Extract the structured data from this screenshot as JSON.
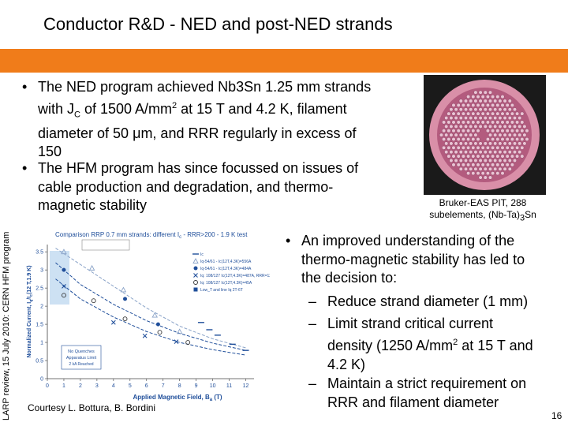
{
  "slide": {
    "title": "Conductor R&D - NED and post-NED strands",
    "side_text": "LARP review, 15 July 2010: CERN HFM program",
    "page_number": "16",
    "banner_color": "#f07c1a"
  },
  "bullets_left": [
    {
      "marker": "•",
      "lines": [
        "The NED program achieved Nb3Sn 1.25 mm strands",
        {
          "pre": "with J",
          "sub": "C",
          "post": " of 1500 A/mm",
          "sup": "2",
          "post2": " at 15 T and 4.2 K, filament"
        },
        "diameter of 50 μm, and RRR regularly in excess of",
        "150"
      ]
    },
    {
      "marker": "•",
      "lines": [
        "The HFM program has since focussed on issues of",
        "cable production and degradation, and thermo-",
        "magnetic stability"
      ]
    }
  ],
  "bullet_right": {
    "marker": "•",
    "lines": [
      "An improved understanding of the",
      "thermo-magnetic stability has led to",
      "the decision to:"
    ]
  },
  "sub_bullets": [
    {
      "marker": "–",
      "lines": [
        [
          "Reduce strand diameter (1 mm)"
        ]
      ]
    },
    {
      "marker": "–",
      "lines": [
        [
          "Limit strand critical current"
        ],
        [
          "density (1250 A/mm",
          "2",
          " at 15 T and"
        ],
        [
          "4.2 K)"
        ]
      ]
    },
    {
      "marker": "–",
      "lines": [
        [
          "Maintain a strict requirement on"
        ],
        [
          "RRR and filament diameter"
        ]
      ]
    }
  ],
  "photo_caption": {
    "line1": "Bruker-EAS PIT, 288",
    "line2_pre": "subelements, (Nb-Ta)",
    "line2_sub": "3",
    "line2_post": "Sn"
  },
  "courtesy": "Courtesy L. Bottura, B. Bordini",
  "chart_data": {
    "type": "scatter",
    "title": "Comparison RRP 0.7 mm strands: different I",
    "title_sub": "c",
    "title_post": " - RRR>200 - 1.9 K test",
    "xlabel": "Applied Magnetic Field, B",
    "xlabel_sub": "a",
    "xlabel_post": " (T)",
    "ylabel": "Normalized Current, I",
    "ylabel_sub": "q",
    "ylabel_mid": "/I",
    "ylabel_sub2": "c",
    "ylabel_post": "(12 T,1.9 K)",
    "x_ticks": [
      "0",
      "1",
      "2",
      "3",
      "4",
      "5",
      "6",
      "7",
      "8",
      "9",
      "10",
      "11",
      "12"
    ],
    "y_ticks": [
      "0",
      "0.5",
      "1",
      "1.5",
      "2",
      "2.5",
      "3",
      "3.5"
    ],
    "xlim": [
      0,
      12.5
    ],
    "ylim": [
      0,
      3.7
    ],
    "annotation": [
      "No Quenches",
      "Apparatus Limit",
      "2 kA Reached"
    ],
    "series": [
      {
        "name": "Ic",
        "marker": "dash",
        "color": "#1f4e9a",
        "x": [
          9.3,
          9.8,
          10.3,
          11.2,
          12
        ],
        "y": [
          1.55,
          1.35,
          1.2,
          0.95,
          0.78
        ]
      },
      {
        "name": "Iq-54/61 - Ic(12T,4.3K)=556A",
        "marker": "triangle-open",
        "color": "#8aa3c8",
        "x": [
          1,
          2.7,
          4.6,
          6.5,
          8
        ],
        "y": [
          3.5,
          3.05,
          2.45,
          1.75,
          1.3
        ]
      },
      {
        "name": "Iq-54/61 - Ic(12T,4.3K)=484A",
        "marker": "circle-filled",
        "color": "#1f4e9a",
        "x": [
          1,
          4.7,
          6.7
        ],
        "y": [
          3.0,
          2.2,
          1.5
        ]
      },
      {
        "name": "Iq: 108/127 Ic(12T,4.3K)=487A, RRR=120",
        "marker": "x",
        "color": "#1f4e9a",
        "x": [
          1,
          4,
          5.9,
          7.8
        ],
        "y": [
          2.55,
          1.55,
          1.18,
          1.02
        ]
      },
      {
        "name": "Iq: 108/127 Ic(12T,4.3K)=45A",
        "marker": "circle-open",
        "color": "#333333",
        "x": [
          1,
          2.8,
          4.7,
          6.8,
          8.5
        ],
        "y": [
          2.3,
          2.15,
          1.65,
          1.28,
          1.0
        ]
      },
      {
        "name": "Low_T and line Iq 2T-6T",
        "marker": "square",
        "color": "#1f4e9a",
        "x": [],
        "y": []
      }
    ],
    "curves": [
      {
        "name": "fit-1",
        "color": "#8aa3c8",
        "x": [
          0.5,
          2,
          4,
          6,
          8,
          10,
          12
        ],
        "y": [
          3.6,
          3.15,
          2.55,
          1.95,
          1.45,
          1.1,
          0.85
        ]
      },
      {
        "name": "fit-2",
        "color": "#1f4e9a",
        "x": [
          0.5,
          2,
          4,
          6,
          8,
          10,
          12
        ],
        "y": [
          3.2,
          2.6,
          2.05,
          1.6,
          1.25,
          0.98,
          0.78
        ]
      },
      {
        "name": "fit-3",
        "color": "#1f4e9a",
        "x": [
          0.5,
          2,
          4,
          6,
          8,
          10,
          12
        ],
        "y": [
          2.75,
          2.2,
          1.7,
          1.3,
          1.0,
          0.8,
          0.65
        ]
      }
    ],
    "grid": false,
    "legend_position": "top-right"
  }
}
